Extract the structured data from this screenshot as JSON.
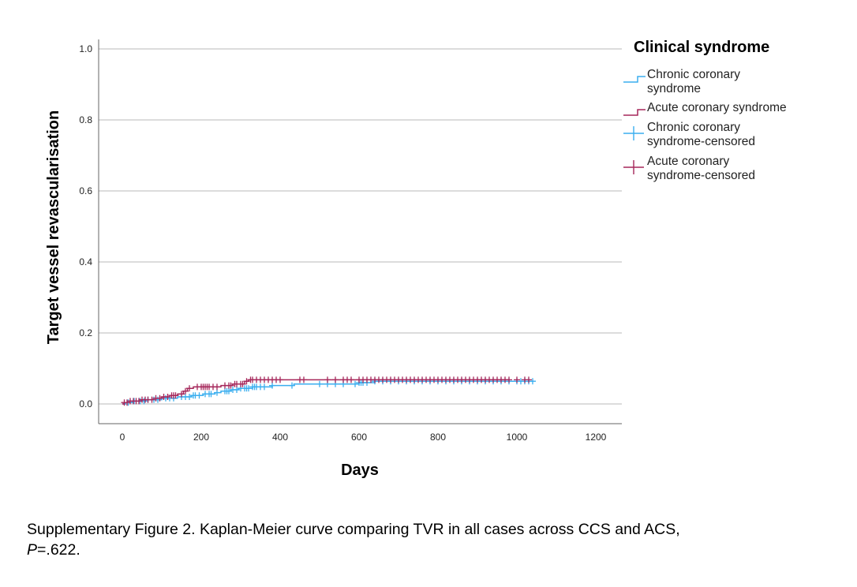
{
  "chart_data": {
    "type": "line",
    "subtype": "kaplan-meier",
    "xlabel": "Days",
    "ylabel": "Target vessel revascularisation",
    "xlim": [
      0,
      1200
    ],
    "ylim": [
      0,
      1.0
    ],
    "xticks": [
      "0",
      "200",
      "400",
      "600",
      "800",
      "1000",
      "1200"
    ],
    "yticks": [
      "0.0",
      "0.2",
      "0.4",
      "0.6",
      "0.8",
      "1.0"
    ],
    "grid": "horizontal",
    "legend_title": "Clinical syndrome",
    "legend_position": "top-right",
    "legend": [
      {
        "line1": "Chronic coronary",
        "line2": "syndrome",
        "symbol": "step",
        "color": "#3AAEEF"
      },
      {
        "line1": "Acute coronary syndrome",
        "line2": "",
        "symbol": "step",
        "color": "#A5275A"
      },
      {
        "line1": "Chronic coronary",
        "line2": "syndrome-censored",
        "symbol": "cross",
        "color": "#3AAEEF"
      },
      {
        "line1": "Acute coronary",
        "line2": "syndrome-censored",
        "symbol": "cross",
        "color": "#A5275A"
      }
    ],
    "series": [
      {
        "name": "Chronic coronary syndrome",
        "color": "#3AAEEF",
        "steps": [
          [
            0,
            0.0
          ],
          [
            8,
            0.004
          ],
          [
            25,
            0.008
          ],
          [
            60,
            0.012
          ],
          [
            100,
            0.016
          ],
          [
            140,
            0.02
          ],
          [
            175,
            0.024
          ],
          [
            205,
            0.028
          ],
          [
            235,
            0.032
          ],
          [
            250,
            0.036
          ],
          [
            275,
            0.04
          ],
          [
            295,
            0.044
          ],
          [
            330,
            0.048
          ],
          [
            380,
            0.052
          ],
          [
            435,
            0.056
          ],
          [
            600,
            0.06
          ],
          [
            640,
            0.064
          ],
          [
            1040,
            0.064
          ]
        ],
        "censored": [
          15,
          30,
          45,
          55,
          65,
          80,
          90,
          110,
          120,
          130,
          150,
          160,
          170,
          180,
          185,
          195,
          210,
          220,
          225,
          240,
          260,
          265,
          270,
          280,
          290,
          300,
          310,
          315,
          320,
          330,
          335,
          340,
          350,
          360,
          380,
          430,
          500,
          520,
          540,
          560,
          590,
          600,
          605,
          610,
          620,
          640,
          660,
          680,
          700,
          720,
          740,
          760,
          780,
          800,
          820,
          840,
          860,
          880,
          900,
          920,
          940,
          960,
          980,
          1000,
          1010,
          1020,
          1030,
          1040
        ]
      },
      {
        "name": "Acute coronary syndrome",
        "color": "#A5275A",
        "steps": [
          [
            0,
            0.0
          ],
          [
            5,
            0.004
          ],
          [
            15,
            0.008
          ],
          [
            45,
            0.012
          ],
          [
            80,
            0.016
          ],
          [
            100,
            0.02
          ],
          [
            120,
            0.024
          ],
          [
            140,
            0.028
          ],
          [
            155,
            0.036
          ],
          [
            165,
            0.044
          ],
          [
            180,
            0.048
          ],
          [
            250,
            0.052
          ],
          [
            280,
            0.056
          ],
          [
            310,
            0.064
          ],
          [
            320,
            0.068
          ],
          [
            620,
            0.068
          ],
          [
            980,
            0.068
          ]
        ],
        "censored": [
          5,
          12,
          20,
          28,
          35,
          42,
          50,
          58,
          65,
          75,
          85,
          95,
          105,
          115,
          125,
          130,
          135,
          150,
          160,
          170,
          190,
          200,
          205,
          210,
          215,
          220,
          230,
          240,
          260,
          270,
          275,
          285,
          290,
          300,
          305,
          315,
          325,
          330,
          340,
          350,
          360,
          370,
          380,
          390,
          400,
          450,
          460,
          520,
          540,
          560,
          570,
          580,
          600,
          610,
          620,
          630,
          640,
          650,
          660,
          670,
          680,
          690,
          700,
          710,
          720,
          730,
          740,
          750,
          760,
          770,
          780,
          790,
          800,
          810,
          820,
          830,
          840,
          850,
          860,
          870,
          880,
          890,
          900,
          910,
          920,
          930,
          940,
          950,
          960,
          970,
          980,
          1000,
          1020,
          1030
        ]
      }
    ]
  },
  "caption": {
    "text": "Supplementary Figure 2. Kaplan-Meier curve comparing TVR in all cases across CCS and ACS,",
    "p_label": "P",
    "p_value": "=.622."
  }
}
